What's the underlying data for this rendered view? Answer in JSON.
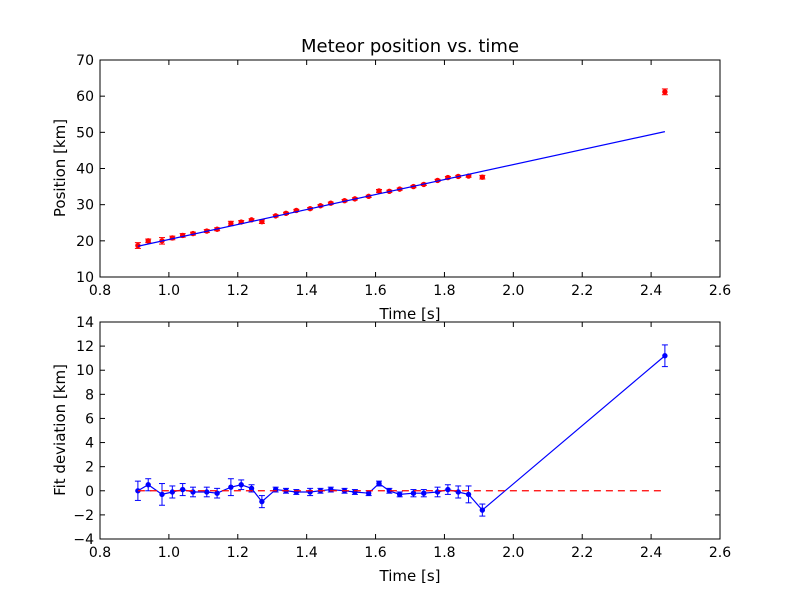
{
  "chart_data": [
    {
      "type": "scatter",
      "title": "Meteor position vs. time",
      "xlabel": "Time [s]",
      "ylabel": "Position [km]",
      "xlim": [
        0.8,
        2.6
      ],
      "ylim": [
        10,
        70
      ],
      "xticks": [
        "0.8",
        "1.0",
        "1.2",
        "1.4",
        "1.6",
        "1.8",
        "2.0",
        "2.2",
        "2.4",
        "2.6"
      ],
      "yticks": [
        "10",
        "20",
        "30",
        "40",
        "50",
        "60",
        "70"
      ],
      "grid": false,
      "series": [
        {
          "kind": "points-with-errorbars",
          "color": "#ff0000",
          "x": [
            0.91,
            0.94,
            0.98,
            1.01,
            1.04,
            1.07,
            1.11,
            1.14,
            1.18,
            1.21,
            1.24,
            1.27,
            1.31,
            1.34,
            1.37,
            1.41,
            1.44,
            1.47,
            1.51,
            1.54,
            1.58,
            1.61,
            1.64,
            1.67,
            1.71,
            1.74,
            1.78,
            1.81,
            1.84,
            1.87,
            1.91,
            2.44
          ],
          "y": [
            18.7,
            20.0,
            20.0,
            20.8,
            21.5,
            22.0,
            22.7,
            23.2,
            24.8,
            25.2,
            25.8,
            25.3,
            26.9,
            27.6,
            28.4,
            28.9,
            29.7,
            30.4,
            31.1,
            31.6,
            32.3,
            33.8,
            33.7,
            34.3,
            35.0,
            35.6,
            36.7,
            37.5,
            37.8,
            37.9,
            37.6,
            61.2
          ],
          "yerr": [
            0.8,
            0.5,
            0.9,
            0.5,
            0.5,
            0.4,
            0.4,
            0.4,
            0.6,
            0.4,
            0.3,
            0.5,
            0.3,
            0.3,
            0.3,
            0.3,
            0.3,
            0.3,
            0.3,
            0.3,
            0.3,
            0.4,
            0.3,
            0.3,
            0.3,
            0.3,
            0.3,
            0.3,
            0.3,
            0.3,
            0.5,
            0.8
          ]
        },
        {
          "kind": "line",
          "color": "#0000ff",
          "x": [
            0.91,
            2.44
          ],
          "y": [
            18.5,
            50.2
          ]
        }
      ]
    },
    {
      "type": "line",
      "title": "",
      "xlabel": "Time [s]",
      "ylabel": "Fit deviation [km]",
      "xlim": [
        0.8,
        2.6
      ],
      "ylim": [
        -4,
        14
      ],
      "xticks": [
        "0.8",
        "1.0",
        "1.2",
        "1.4",
        "1.6",
        "1.8",
        "2.0",
        "2.2",
        "2.4",
        "2.6"
      ],
      "yticks": [
        "−4",
        "−2",
        "0",
        "2",
        "4",
        "6",
        "8",
        "10",
        "12",
        "14"
      ],
      "grid": false,
      "series": [
        {
          "kind": "line-with-errorbars",
          "color": "#0000ff",
          "x": [
            0.91,
            0.94,
            0.98,
            1.01,
            1.04,
            1.07,
            1.11,
            1.14,
            1.18,
            1.21,
            1.24,
            1.27,
            1.31,
            1.34,
            1.37,
            1.41,
            1.44,
            1.47,
            1.51,
            1.54,
            1.58,
            1.61,
            1.64,
            1.67,
            1.71,
            1.74,
            1.78,
            1.81,
            1.84,
            1.87,
            1.91,
            2.44
          ],
          "y": [
            0.0,
            0.5,
            -0.3,
            -0.1,
            0.1,
            -0.1,
            -0.1,
            -0.2,
            0.3,
            0.5,
            0.2,
            -0.9,
            0.1,
            0.0,
            -0.1,
            -0.1,
            0.0,
            0.1,
            0.0,
            -0.1,
            -0.2,
            0.6,
            0.0,
            -0.3,
            -0.2,
            -0.2,
            -0.1,
            0.1,
            -0.1,
            -0.3,
            -1.6,
            11.2
          ],
          "yerr": [
            0.8,
            0.5,
            0.9,
            0.5,
            0.5,
            0.4,
            0.4,
            0.4,
            0.7,
            0.4,
            0.3,
            0.5,
            0.2,
            0.2,
            0.2,
            0.3,
            0.2,
            0.2,
            0.2,
            0.2,
            0.2,
            0.2,
            0.2,
            0.2,
            0.3,
            0.3,
            0.4,
            0.4,
            0.5,
            0.7,
            0.5,
            0.9
          ]
        },
        {
          "kind": "dashed-line",
          "color": "#ff0000",
          "x": [
            0.91,
            2.44
          ],
          "y": [
            0,
            0
          ]
        }
      ]
    }
  ]
}
